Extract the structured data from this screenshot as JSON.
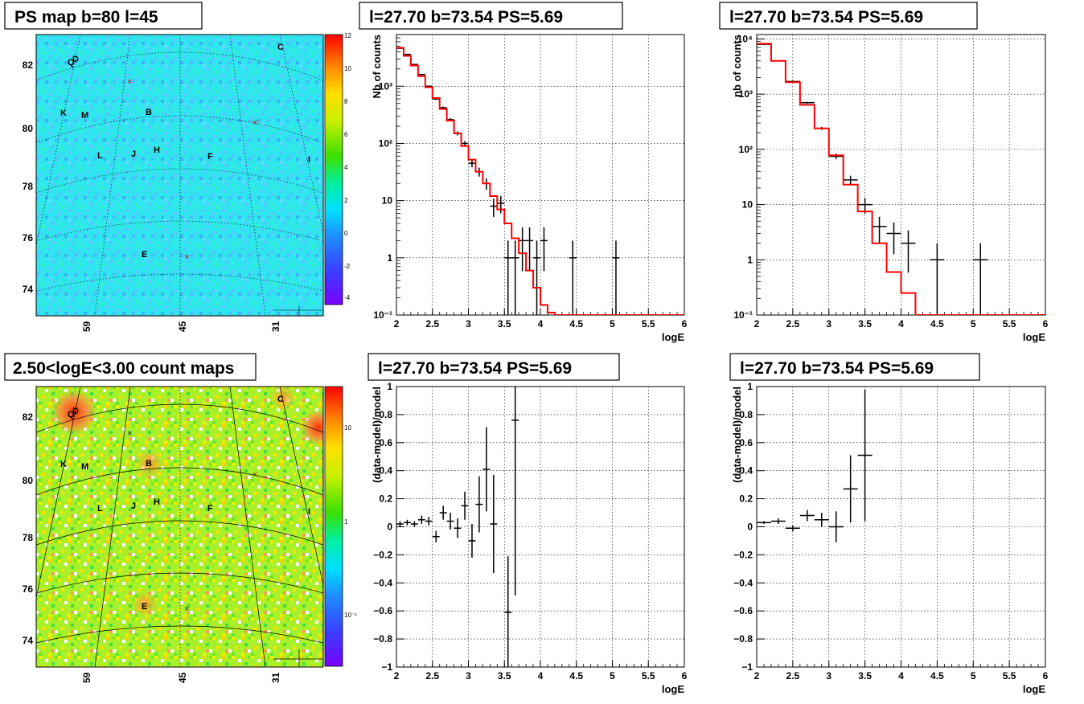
{
  "panels": {
    "map_top_title": "PS map b=80 l=45",
    "map_bottom_title": "2.50<logE<3.00 count maps",
    "plot_titles": [
      "l=27.70 b=73.54 PS=5.69",
      "l=27.70 b=73.54 PS=5.69",
      "l=27.70 b=73.54 PS=5.69",
      "l=27.70 b=73.54 PS=5.69"
    ]
  },
  "maps": {
    "y_ticks": [
      "82",
      "80",
      "78",
      "76",
      "74"
    ],
    "x_ticks": [
      "59",
      "45",
      "31"
    ],
    "markers": [
      "C",
      "D",
      "Q",
      "K",
      "M",
      "B",
      "L",
      "J",
      "H",
      "F",
      "I",
      "E"
    ],
    "top_colorbar": [
      "12",
      "10",
      "8",
      "6",
      "4",
      "2",
      "0",
      "-2",
      "-4"
    ],
    "bottom_colorbar": [
      "10",
      "1",
      "10⁻¹"
    ]
  },
  "colors": {
    "model": "#ff0000",
    "data": "#000000"
  },
  "chart_data": [
    {
      "type": "line",
      "title": "l=27.70 b=73.54 PS=5.69",
      "xlabel": "logE",
      "ylabel": "Nb of counts",
      "xlim": [
        2,
        6
      ],
      "ylim": [
        0.1,
        8000
      ],
      "yscale": "log",
      "x_ticks": [
        "2",
        "2.5",
        "3",
        "3.5",
        "4",
        "4.5",
        "5",
        "5.5",
        "6"
      ],
      "y_ticks": [
        "10⁻¹",
        "1",
        "10",
        "10²",
        "10³"
      ],
      "series": [
        {
          "name": "data",
          "x": [
            2.05,
            2.15,
            2.25,
            2.35,
            2.45,
            2.55,
            2.65,
            2.75,
            2.85,
            2.95,
            3.05,
            3.15,
            3.25,
            3.35,
            3.45,
            3.55,
            3.65,
            3.75,
            3.85,
            3.95,
            4.05,
            4.45,
            5.05
          ],
          "y": [
            4600,
            3600,
            2400,
            1600,
            1000,
            600,
            420,
            260,
            150,
            100,
            45,
            32,
            20,
            8,
            9,
            1,
            1,
            2,
            2,
            1,
            2,
            1,
            1
          ]
        },
        {
          "name": "model",
          "x": [
            2.05,
            2.15,
            2.25,
            2.35,
            2.45,
            2.55,
            2.65,
            2.75,
            2.85,
            2.95,
            3.05,
            3.15,
            3.25,
            3.35,
            3.45,
            3.55,
            3.65,
            3.75,
            3.85,
            3.95,
            4.05,
            4.15,
            4.25,
            4.35,
            4.45,
            4.55,
            4.65,
            4.75,
            4.85,
            4.95,
            5.05,
            5.15,
            5.25,
            5.35,
            5.45,
            5.55,
            5.65,
            5.75,
            5.85,
            5.95
          ],
          "y": [
            4700,
            3400,
            2300,
            1500,
            960,
            620,
            400,
            250,
            150,
            90,
            52,
            32,
            20,
            12,
            7,
            4,
            2.2,
            1.2,
            0.6,
            0.3,
            0.15,
            0.11,
            0.1,
            0.1,
            0.1,
            0.1,
            0.1,
            0.1,
            0.1,
            0.1,
            0.1,
            0.1,
            0.1,
            0.1,
            0.1,
            0.1,
            0.1,
            0.1,
            0.1,
            0.1
          ]
        }
      ]
    },
    {
      "type": "line",
      "title": "l=27.70 b=73.54 PS=5.69",
      "xlabel": "logE",
      "ylabel": "nb of counts",
      "xlim": [
        2,
        6
      ],
      "ylim": [
        0.1,
        12000
      ],
      "yscale": "log",
      "x_ticks": [
        "2",
        "2.5",
        "3",
        "3.5",
        "4",
        "4.5",
        "5",
        "5.5",
        "6"
      ],
      "y_ticks": [
        "10⁻¹",
        "1",
        "10",
        "10²",
        "10³",
        "10⁴"
      ],
      "series": [
        {
          "name": "data",
          "x": [
            2.1,
            2.3,
            2.5,
            2.7,
            2.9,
            3.1,
            3.3,
            3.5,
            3.7,
            3.9,
            4.1,
            4.5,
            5.1
          ],
          "y": [
            8000,
            4000,
            1700,
            700,
            240,
            75,
            28,
            10,
            4,
            3,
            2,
            1,
            1
          ]
        },
        {
          "name": "model",
          "x": [
            2.1,
            2.3,
            2.5,
            2.7,
            2.9,
            3.1,
            3.3,
            3.5,
            3.7,
            3.9,
            4.1,
            4.3,
            4.5,
            4.7,
            4.9,
            5.1,
            5.3,
            5.5,
            5.7,
            5.9
          ],
          "y": [
            8200,
            4000,
            1650,
            640,
            240,
            78,
            23,
            7.5,
            2,
            0.6,
            0.25,
            0.1,
            0.1,
            0.1,
            0.1,
            0.1,
            0.1,
            0.1,
            0.1,
            0.1
          ]
        }
      ]
    },
    {
      "type": "scatter",
      "title": "l=27.70 b=73.54 PS=5.69",
      "xlabel": "logE",
      "ylabel": "(data-model)/model",
      "xlim": [
        2,
        6
      ],
      "ylim": [
        -1,
        1
      ],
      "x_ticks": [
        "2",
        "2.5",
        "3",
        "3.5",
        "4",
        "4.5",
        "5",
        "5.5",
        "6"
      ],
      "y_ticks": [
        "1",
        "0.8",
        "0.6",
        "0.4",
        "0.2",
        "0",
        "−0.2",
        "−0.4",
        "−0.6",
        "−0.8",
        "−1"
      ],
      "series": [
        {
          "name": "residual",
          "x": [
            2.05,
            2.15,
            2.25,
            2.35,
            2.45,
            2.55,
            2.65,
            2.75,
            2.85,
            2.95,
            3.05,
            3.15,
            3.25,
            3.35,
            3.55,
            3.65
          ],
          "y": [
            0.02,
            0.03,
            0.02,
            0.05,
            0.04,
            -0.07,
            0.1,
            0.04,
            -0.01,
            0.15,
            -0.1,
            0.16,
            0.41,
            0.02,
            -0.61,
            0.76
          ],
          "err": [
            0.02,
            0.02,
            0.02,
            0.03,
            0.03,
            0.04,
            0.05,
            0.06,
            0.07,
            0.1,
            0.12,
            0.2,
            0.3,
            0.35,
            0.4,
            1.25
          ]
        }
      ]
    },
    {
      "type": "scatter",
      "title": "l=27.70 b=73.54 PS=5.69",
      "xlabel": "logE",
      "ylabel": "(data-model)/model",
      "xlim": [
        2,
        6
      ],
      "ylim": [
        -1,
        1
      ],
      "x_ticks": [
        "2",
        "2.5",
        "3",
        "3.5",
        "4",
        "4.5",
        "5",
        "5.5",
        "6"
      ],
      "y_ticks": [
        "1",
        "0.8",
        "0.6",
        "0.4",
        "0.2",
        "0",
        "−0.2",
        "−0.4",
        "−0.6",
        "−0.8",
        "−1"
      ],
      "series": [
        {
          "name": "residual",
          "x": [
            2.1,
            2.3,
            2.5,
            2.7,
            2.9,
            3.1,
            3.3,
            3.5
          ],
          "y": [
            0.03,
            0.04,
            -0.01,
            0.08,
            0.05,
            0.0,
            0.27,
            0.51
          ],
          "err": [
            0.01,
            0.02,
            0.02,
            0.04,
            0.05,
            0.11,
            0.24,
            0.47
          ]
        }
      ]
    }
  ]
}
